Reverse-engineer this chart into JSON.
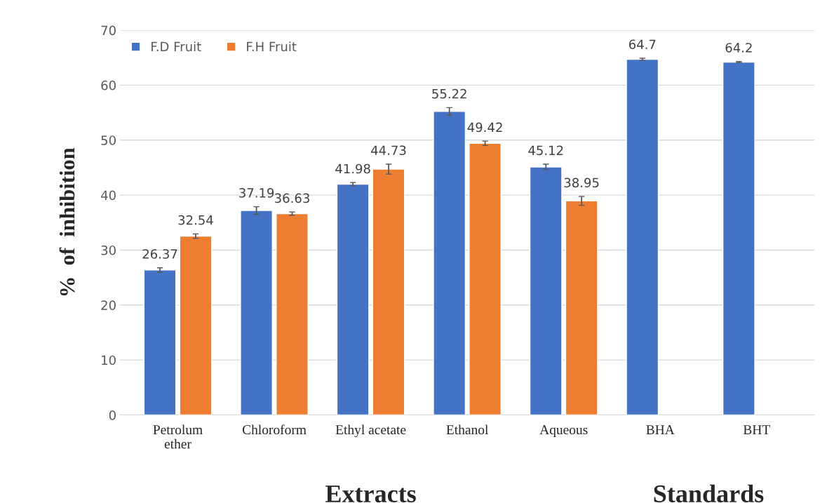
{
  "chart_data": {
    "type": "bar",
    "ylabel": "%  of  inhibition",
    "categories": [
      "Petrolum\nether",
      "Chloroform",
      "Ethyl acetate",
      "Ethanol",
      "Aqueous",
      "BHA",
      "BHT"
    ],
    "series": [
      {
        "name": "F.D Fruit",
        "color": "#4472c4",
        "values": [
          26.37,
          37.19,
          41.98,
          55.22,
          45.12,
          64.7,
          64.2
        ],
        "errors": [
          0.4,
          0.7,
          0.3,
          0.7,
          0.5,
          0.2,
          0.1
        ]
      },
      {
        "name": "F.H Fruit",
        "color": "#ed7d31",
        "values": [
          32.54,
          36.63,
          44.73,
          49.42,
          38.95,
          null,
          null
        ],
        "errors": [
          0.4,
          0.3,
          0.9,
          0.4,
          0.8,
          null,
          null
        ]
      }
    ],
    "ylim": [
      0,
      70
    ],
    "yticks": [
      0,
      10,
      20,
      30,
      40,
      50,
      60,
      70
    ],
    "grid": "y",
    "legend": "top left",
    "data_labels": true,
    "annotations": [
      "Extracts",
      "Standards"
    ]
  }
}
